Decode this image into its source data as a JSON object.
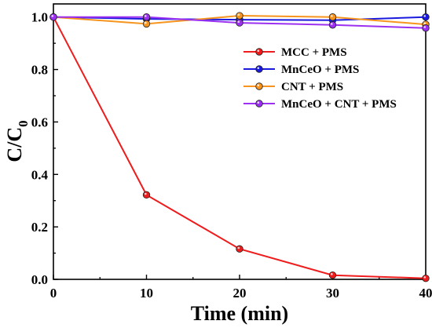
{
  "chart_data": {
    "type": "line",
    "xlabel": "Time (min)",
    "ylabel": {
      "main": "C/C",
      "sub": "0"
    },
    "xlim": [
      0,
      40
    ],
    "ylim": [
      0,
      1.05
    ],
    "x_ticks": [
      "0",
      "10",
      "20",
      "30",
      "40"
    ],
    "y_ticks": [
      "0.0",
      "0.2",
      "0.4",
      "0.6",
      "0.8",
      "1.0"
    ],
    "grid": false,
    "legend_position": "top-right",
    "x": [
      0,
      10,
      20,
      30,
      40
    ],
    "series": [
      {
        "name": "MCC + PMS",
        "color": "#ee1c1c",
        "values": [
          1.0,
          0.322,
          0.116,
          0.016,
          0.004
        ]
      },
      {
        "name": "MnCeO + PMS",
        "color": "#1a1adf",
        "values": [
          1.0,
          0.993,
          0.99,
          0.988,
          1.0
        ]
      },
      {
        "name": "CNT + PMS",
        "color": "#f7941d",
        "values": [
          1.0,
          0.974,
          1.005,
          1.0,
          0.972
        ]
      },
      {
        "name": "MnCeO + CNT + PMS",
        "color": "#9b30f0",
        "values": [
          1.0,
          1.0,
          0.978,
          0.97,
          0.958
        ]
      }
    ]
  }
}
